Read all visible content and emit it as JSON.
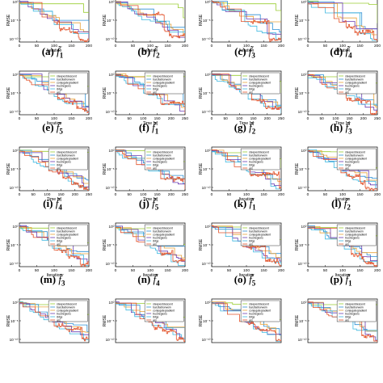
{
  "series_colors": [
    "#9acd32",
    "#2b8fd4",
    "#e8a33b",
    "#6a3db2",
    "#3fb8e0",
    "#e2522a"
  ],
  "legend_entries": [
    "steepestdescent",
    "barzilaiborwein",
    "conjugategradient",
    "trustregions",
    "lbfgs",
    "ars"
  ],
  "chart_data": [
    {
      "type": "line",
      "caption": "(a)",
      "fn": "f̃",
      "sub": "1",
      "xlabel": "Iteration",
      "ylabel": "RMSE",
      "xlim": [
        0,
        200
      ],
      "xticks": [
        "0",
        "50",
        "100",
        "150",
        "200"
      ],
      "yticks": [
        "10⁰",
        "10⁻⁵",
        "10⁻¹⁰"
      ],
      "legend": false
    },
    {
      "type": "line",
      "caption": "(b)",
      "fn": "f̃",
      "sub": "2",
      "xlabel": "Iteration",
      "ylabel": "RMSE",
      "xlim": [
        0,
        200
      ],
      "xticks": [
        "0",
        "50",
        "100",
        "150",
        "200"
      ],
      "yticks": [
        "10⁰",
        "10⁻⁵",
        "10⁻¹⁰"
      ],
      "legend": false
    },
    {
      "type": "line",
      "caption": "(c)",
      "fn": "f̃",
      "sub": "3",
      "xlabel": "Iteration",
      "ylabel": "RMSE",
      "xlim": [
        0,
        200
      ],
      "xticks": [
        "0",
        "50",
        "100",
        "150",
        "200"
      ],
      "yticks": [
        "10⁰",
        "10⁻⁵",
        "10⁻¹⁰"
      ],
      "legend": false
    },
    {
      "type": "line",
      "caption": "(d)",
      "fn": "f̃",
      "sub": "4",
      "xlabel": "Iteration",
      "ylabel": "RMSE",
      "xlim": [
        0,
        200
      ],
      "xticks": [
        "0",
        "50",
        "100",
        "150",
        "200"
      ],
      "yticks": [
        "10⁰",
        "10⁻⁵",
        "10⁻¹⁰"
      ],
      "legend": false
    },
    {
      "type": "line",
      "caption": "(e)",
      "fn": "f̃",
      "sub": "5",
      "xlabel": "Iteration",
      "ylabel": "RMSE",
      "xlim": [
        0,
        200
      ],
      "xticks": [
        "0",
        "50",
        "100",
        "150",
        "200"
      ],
      "yticks": [
        "10⁰",
        "10⁻⁵",
        "10⁻¹⁰"
      ],
      "legend": true
    },
    {
      "type": "line",
      "caption": "(f)",
      "fn": "f̃",
      "sub": "1",
      "xlabel": "Time [s]",
      "ylabel": "RMSE",
      "xlim": [
        0,
        250
      ],
      "xticks": [
        "0",
        "50",
        "100",
        "150",
        "200",
        "250"
      ],
      "yticks": [
        "10⁰",
        "10⁻⁵",
        "10⁻¹⁰"
      ],
      "legend": true
    },
    {
      "type": "line",
      "caption": "(g)",
      "fn": "f̃",
      "sub": "2",
      "xlabel": "Time [s]",
      "ylabel": "RMSE",
      "xlim": [
        0,
        250
      ],
      "xticks": [
        "0",
        "50",
        "100",
        "150",
        "200",
        "250"
      ],
      "yticks": [
        "10⁰",
        "10⁻⁵",
        "10⁻¹⁰"
      ],
      "legend": true
    },
    {
      "type": "line",
      "caption": "(h)",
      "fn": "f̃",
      "sub": "3",
      "xlabel": "Time [s]",
      "ylabel": "RMSE",
      "xlim": [
        0,
        250
      ],
      "xticks": [
        "0",
        "50",
        "100",
        "150",
        "200",
        "250"
      ],
      "yticks": [
        "10⁰",
        "10⁻⁵",
        "10⁻¹⁰"
      ],
      "legend": true
    },
    {
      "type": "line",
      "caption": "(i)",
      "fn": "f̃",
      "sub": "4",
      "xlabel": "Time [s]",
      "ylabel": "RMSE",
      "xlim": [
        0,
        250
      ],
      "xticks": [
        "0",
        "50",
        "100",
        "150",
        "200",
        "250"
      ],
      "yticks": [
        "10⁰",
        "10⁻⁵",
        "10⁻¹⁰"
      ],
      "legend": true
    },
    {
      "type": "line",
      "caption": "(j)",
      "fn": "f̃",
      "sub": "5",
      "xlabel": "Time [s]",
      "ylabel": "RMSE",
      "xlim": [
        0,
        250
      ],
      "xticks": [
        "0",
        "50",
        "100",
        "150",
        "200",
        "250"
      ],
      "yticks": [
        "10⁰",
        "10⁻⁵",
        "10⁻¹⁰"
      ],
      "legend": true
    },
    {
      "type": "line",
      "caption": "(k)",
      "fn": "f̃",
      "sub": "1",
      "xlabel": "Iteration",
      "ylabel": "RMSE",
      "xlim": [
        0,
        200
      ],
      "xticks": [
        "0",
        "50",
        "100",
        "150",
        "200"
      ],
      "yticks": [
        "10⁰",
        "10⁻⁵",
        "10⁻¹⁰"
      ],
      "legend": true
    },
    {
      "type": "line",
      "caption": "(l)",
      "fn": "f̃",
      "sub": "2",
      "xlabel": "Iteration",
      "ylabel": "RMSE",
      "xlim": [
        0,
        200
      ],
      "xticks": [
        "0",
        "50",
        "100",
        "150",
        "200"
      ],
      "yticks": [
        "10⁰",
        "10⁻⁵",
        "10⁻¹⁰"
      ],
      "legend": true
    },
    {
      "type": "line",
      "caption": "(m)",
      "fn": "f̃",
      "sub": "3",
      "xlabel": "Iteration",
      "ylabel": "RMSE",
      "xlim": [
        0,
        200
      ],
      "xticks": [
        "0",
        "50",
        "100",
        "150",
        "200"
      ],
      "yticks": [
        "10⁰",
        "10⁻⁵",
        "10⁻¹⁰"
      ],
      "legend": true
    },
    {
      "type": "line",
      "caption": "(n)",
      "fn": "f̃",
      "sub": "4",
      "xlabel": "Iteration",
      "ylabel": "RMSE",
      "xlim": [
        0,
        200
      ],
      "xticks": [
        "0",
        "50",
        "100",
        "150",
        "200"
      ],
      "yticks": [
        "10⁰",
        "10⁻⁵",
        "10⁻¹⁰"
      ],
      "legend": true
    },
    {
      "type": "line",
      "caption": "(o)",
      "fn": "f̃",
      "sub": "5",
      "xlabel": "Iteration",
      "ylabel": "RMSE",
      "xlim": [
        0,
        200
      ],
      "xticks": [
        "0",
        "50",
        "100",
        "150",
        "200"
      ],
      "yticks": [
        "10⁰",
        "10⁻⁵",
        "10⁻¹⁰"
      ],
      "legend": true
    },
    {
      "type": "line",
      "caption": "(p)",
      "fn": "f̃",
      "sub": "1",
      "xlabel": "Iteration",
      "ylabel": "RMSE",
      "xlim": [
        0,
        200
      ],
      "xticks": [
        "0",
        "50",
        "100",
        "150",
        "200"
      ],
      "yticks": [
        "10⁰",
        "10⁻⁵",
        "10⁻¹⁰"
      ],
      "legend": true
    },
    {
      "type": "line",
      "caption": "",
      "fn": "",
      "sub": "",
      "xlabel": "",
      "ylabel": "RMSE",
      "xlim": [
        0,
        200
      ],
      "xticks": [],
      "yticks": [
        "10⁰",
        "10⁻⁵",
        "10⁻¹⁰"
      ],
      "legend": true
    },
    {
      "type": "line",
      "caption": "",
      "fn": "",
      "sub": "",
      "xlabel": "",
      "ylabel": "RMSE",
      "xlim": [
        0,
        200
      ],
      "xticks": [],
      "yticks": [
        "10⁰",
        "10⁻⁵",
        "10⁻¹⁰"
      ],
      "legend": true
    },
    {
      "type": "line",
      "caption": "",
      "fn": "",
      "sub": "",
      "xlabel": "",
      "ylabel": "RMSE",
      "xlim": [
        0,
        200
      ],
      "xticks": [],
      "yticks": [
        "10⁰",
        "10⁻⁵",
        "10⁻¹⁰"
      ],
      "legend": true
    },
    {
      "type": "line",
      "caption": "",
      "fn": "",
      "sub": "",
      "xlabel": "",
      "ylabel": "RMSE",
      "xlim": [
        0,
        200
      ],
      "xticks": [],
      "yticks": [
        "10⁰",
        "10⁻⁵",
        "10⁻¹⁰"
      ],
      "legend": true
    }
  ]
}
